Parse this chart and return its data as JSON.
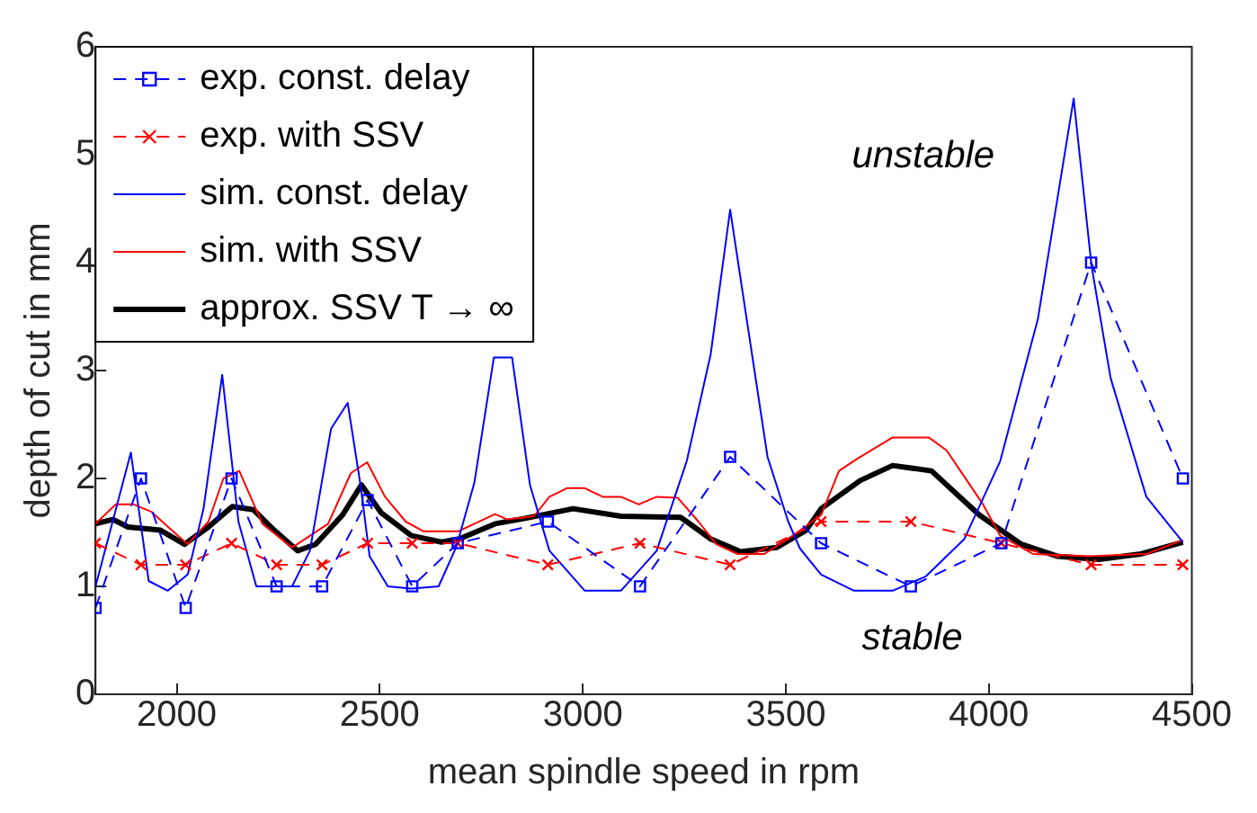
{
  "chart_data": {
    "type": "line",
    "xlabel": "mean spindle speed in rpm",
    "ylabel": "depth of cut in mm",
    "xlim": [
      1800,
      4500
    ],
    "xticks": [
      2000,
      2500,
      3000,
      3500,
      4000,
      4500
    ],
    "ylim": [
      0,
      6
    ],
    "yticks": [
      0,
      1,
      2,
      3,
      4,
      5,
      6
    ],
    "grid": false,
    "legend": "top left",
    "annotations": [
      "unstable",
      "stable"
    ],
    "series": [
      {
        "name": "exp. const. delay",
        "color": "#0000ff",
        "marker": "square",
        "line_style": "dashed",
        "x": [
          1800,
          1912,
          2022,
          2135,
          2246,
          2358,
          2470,
          2580,
          2692,
          2914,
          3141,
          3363,
          3587,
          3808,
          4031,
          4252,
          4478
        ],
        "values": [
          0.8,
          2.0,
          0.8,
          2.0,
          1.0,
          1.0,
          1.8,
          1.0,
          1.4,
          1.6,
          1.0,
          2.2,
          1.4,
          1.0,
          1.4,
          4.0,
          2.0
        ]
      },
      {
        "name": "exp. with SSV",
        "color": "#ff0000",
        "marker": "cross",
        "line_style": "dashed",
        "x": [
          1800,
          1912,
          2022,
          2135,
          2246,
          2358,
          2470,
          2580,
          2692,
          2914,
          3141,
          3363,
          3587,
          3808,
          4031,
          4252,
          4478
        ],
        "values": [
          1.4,
          1.2,
          1.2,
          1.4,
          1.2,
          1.2,
          1.4,
          1.4,
          1.4,
          1.2,
          1.4,
          1.2,
          1.6,
          1.6,
          1.4,
          1.2,
          1.2
        ]
      },
      {
        "name": "sim. const. delay",
        "color": "#0000ff",
        "marker": "none",
        "line_style": "solid",
        "x": [
          1800,
          1887,
          1931,
          1978,
          2027,
          2066,
          2112,
          2152,
          2196,
          2284,
          2328,
          2380,
          2421,
          2453,
          2475,
          2520,
          2578,
          2645,
          2689,
          2733,
          2781,
          2826,
          2870,
          2918,
          3005,
          3094,
          3182,
          3256,
          3315,
          3363,
          3455,
          3506,
          3535,
          3587,
          3668,
          3763,
          3844,
          3940,
          4028,
          4121,
          4209,
          4253,
          4300,
          4388,
          4478
        ],
        "values": [
          1.0,
          2.24,
          1.05,
          0.96,
          1.11,
          1.72,
          2.96,
          1.6,
          1.0,
          1.0,
          1.33,
          2.46,
          2.7,
          1.93,
          1.28,
          1.0,
          0.98,
          1.0,
          1.37,
          1.96,
          3.12,
          3.12,
          1.94,
          1.33,
          0.96,
          0.96,
          1.33,
          2.16,
          3.15,
          4.49,
          2.2,
          1.6,
          1.35,
          1.11,
          0.96,
          0.96,
          1.09,
          1.44,
          2.16,
          3.48,
          5.52,
          3.97,
          2.93,
          1.83,
          1.41
        ]
      },
      {
        "name": "sim. with SSV",
        "color": "#ff0000",
        "marker": "none",
        "line_style": "solid",
        "x": [
          1800,
          1850,
          1894,
          1938,
          1982,
          2027,
          2078,
          2115,
          2154,
          2211,
          2284,
          2373,
          2429,
          2469,
          2513,
          2564,
          2608,
          2693,
          2784,
          2814,
          2880,
          2918,
          2961,
          3005,
          3049,
          3094,
          3138,
          3182,
          3234,
          3285,
          3329,
          3381,
          3447,
          3506,
          3587,
          3631,
          3675,
          3763,
          3852,
          3896,
          3984,
          4028,
          4109,
          4249,
          4388,
          4478
        ],
        "values": [
          1.58,
          1.76,
          1.76,
          1.69,
          1.54,
          1.39,
          1.6,
          2.0,
          2.07,
          1.58,
          1.36,
          1.58,
          2.05,
          2.15,
          1.83,
          1.6,
          1.51,
          1.51,
          1.67,
          1.62,
          1.65,
          1.83,
          1.91,
          1.91,
          1.83,
          1.83,
          1.76,
          1.83,
          1.82,
          1.6,
          1.39,
          1.3,
          1.3,
          1.44,
          1.66,
          2.07,
          2.18,
          2.38,
          2.38,
          2.26,
          1.77,
          1.47,
          1.3,
          1.28,
          1.3,
          1.43
        ]
      },
      {
        "name": "approx. SSV T → ∞",
        "color": "#000000",
        "marker": "none",
        "line_style": "solid",
        "x": [
          1800,
          1843,
          1880,
          1960,
          2019,
          2078,
          2137,
          2189,
          2240,
          2298,
          2342,
          2408,
          2455,
          2504,
          2578,
          2652,
          2696,
          2784,
          2858,
          2976,
          3094,
          3241,
          3315,
          3389,
          3477,
          3550,
          3587,
          3683,
          3763,
          3859,
          3977,
          4080,
          4168,
          4271,
          4374,
          4478
        ],
        "values": [
          1.58,
          1.62,
          1.55,
          1.52,
          1.39,
          1.55,
          1.74,
          1.71,
          1.52,
          1.33,
          1.39,
          1.66,
          1.94,
          1.68,
          1.47,
          1.41,
          1.44,
          1.58,
          1.63,
          1.72,
          1.65,
          1.64,
          1.44,
          1.32,
          1.36,
          1.52,
          1.72,
          1.98,
          2.12,
          2.07,
          1.66,
          1.39,
          1.28,
          1.25,
          1.3,
          1.41
        ]
      }
    ]
  }
}
